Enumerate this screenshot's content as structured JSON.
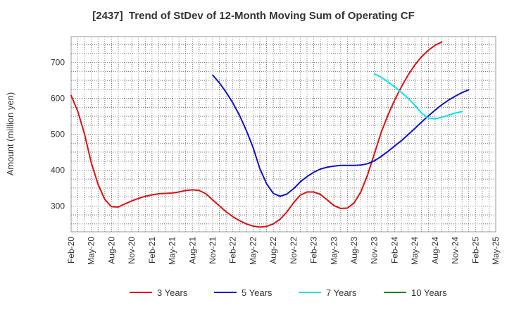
{
  "chart_data": {
    "type": "line",
    "title": "[2437]  Trend of StDev of 12-Month Moving Sum of Operating CF",
    "xlabel": "",
    "ylabel": "Amount (million yen)",
    "ylim": [
      228,
      772
    ],
    "yticks": [
      300,
      400,
      500,
      600,
      700
    ],
    "x_tick_labels": [
      "Feb-20",
      "May-20",
      "Aug-20",
      "Nov-20",
      "Feb-21",
      "May-21",
      "Aug-21",
      "Nov-21",
      "Feb-22",
      "May-22",
      "Aug-22",
      "Nov-22",
      "Feb-23",
      "May-23",
      "Aug-23",
      "Nov-23",
      "Feb-24",
      "May-24",
      "Aug-24",
      "Nov-24",
      "Feb-25",
      "May-25"
    ],
    "x_start": "Feb-20",
    "x_step": "1 month",
    "grid": true,
    "legend_position": "bottom",
    "series": [
      {
        "name": "3 Years",
        "color": "#dd1111",
        "start": "Feb-20",
        "values": [
          608,
          563,
          500,
          420,
          360,
          318,
          298,
          297,
          306,
          314,
          321,
          327,
          331,
          334,
          335,
          336,
          339,
          343,
          345,
          343,
          334,
          317,
          300,
          284,
          270,
          259,
          250,
          244,
          241,
          243,
          250,
          263,
          283,
          309,
          330,
          339,
          339,
          332,
          317,
          301,
          293,
          294,
          309,
          340,
          387,
          446,
          505,
          553,
          595,
          632,
          665,
          693,
          716,
          734,
          748,
          757
        ]
      },
      {
        "name": "5 Years",
        "color": "#1111cc",
        "start": "Nov-21",
        "values": [
          665,
          643,
          617,
          587,
          552,
          510,
          463,
          404,
          362,
          335,
          327,
          333,
          348,
          367,
          382,
          394,
          403,
          408,
          411,
          413,
          413,
          413,
          414,
          418,
          426,
          438,
          452,
          467,
          482,
          499,
          516,
          534,
          551,
          567,
          582,
          595,
          606,
          616,
          624
        ]
      },
      {
        "name": "7 Years",
        "color": "#00e5ee",
        "start": "Nov-23",
        "values": [
          668,
          659,
          646,
          632,
          617,
          600,
          581,
          559,
          545,
          543,
          547,
          553,
          559,
          563
        ]
      },
      {
        "name": "10 Years",
        "color": "#1a8a1a",
        "start": "",
        "values": []
      }
    ]
  }
}
